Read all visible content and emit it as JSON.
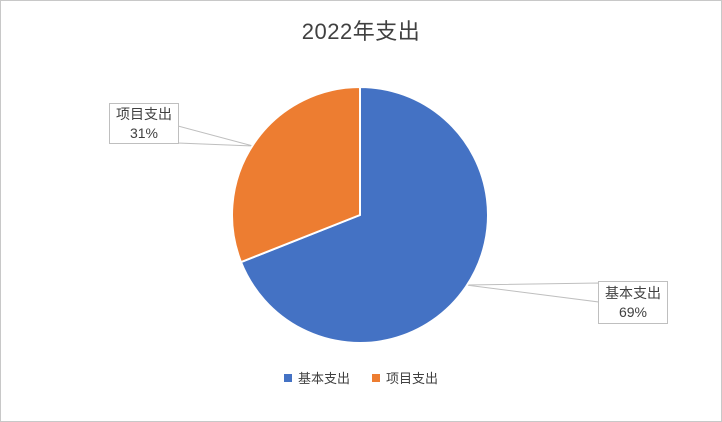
{
  "title": "2022年支出",
  "chart_data": {
    "type": "pie",
    "title": "2022年支出",
    "labels": [
      "基本支出",
      "项目支出"
    ],
    "values": [
      69,
      31
    ],
    "unit": "%",
    "colors": [
      "#4472C4",
      "#ED7D31"
    ],
    "start_angle_deg": 0,
    "direction": "clockwise",
    "legend_position": "bottom",
    "data_labels": [
      "基本支出 69%",
      "项目支出 31%"
    ]
  },
  "callouts": {
    "basic": {
      "label": "基本支出",
      "percent": "69%"
    },
    "project": {
      "label": "项目支出",
      "percent": "31%"
    }
  },
  "legend": {
    "items": [
      {
        "label": "基本支出",
        "color": "#4472C4"
      },
      {
        "label": "项目支出",
        "color": "#ED7D31"
      }
    ]
  }
}
